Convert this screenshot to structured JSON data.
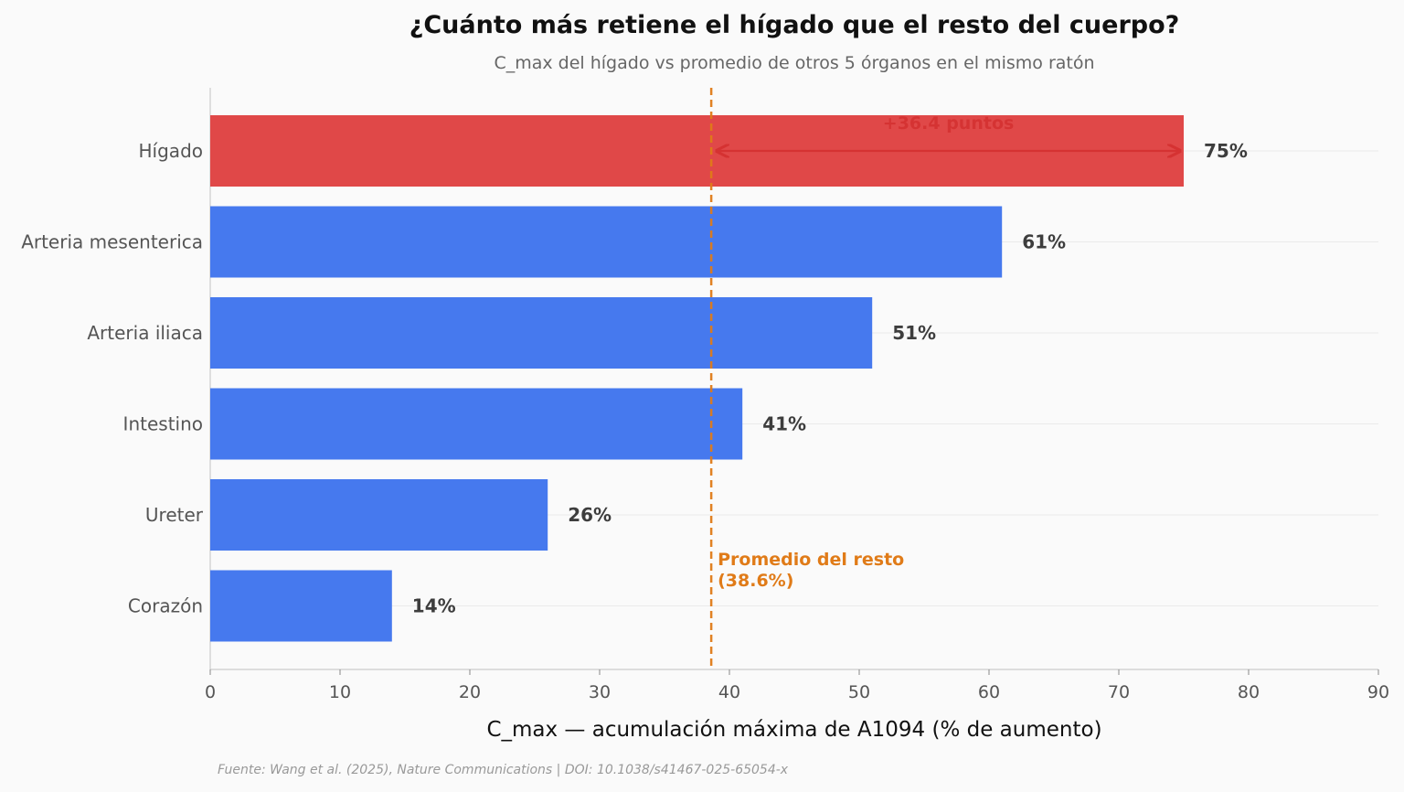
{
  "header": {
    "title": "¿Cuánto más retiene el hígado que el resto del cuerpo?",
    "subtitle": "C_max del hígado vs promedio de otros 5 órganos en el mismo ratón"
  },
  "footer": {
    "source": "Fuente: Wang et al. (2025), Nature Communications | DOI: 10.1038/s41467-025-65054-x"
  },
  "chart_data": {
    "type": "bar",
    "orientation": "horizontal",
    "categories": [
      "Hígado",
      "Arteria mesenterica",
      "Arteria iliaca",
      "Intestino",
      "Ureter",
      "Corazón"
    ],
    "values": [
      75,
      61,
      51,
      41,
      26,
      14
    ],
    "value_labels": [
      "75%",
      "61%",
      "51%",
      "41%",
      "26%",
      "14%"
    ],
    "xlabel": "C_max — acumulación máxima de A1094 (% de aumento)",
    "xlim": [
      0,
      90
    ],
    "xticks": [
      0,
      10,
      20,
      30,
      40,
      50,
      60,
      70,
      80,
      90
    ],
    "grid": "horizontal-light",
    "highlight_category": "Hígado",
    "reference_line": {
      "value": 38.6,
      "label_line1": "Promedio del resto",
      "label_line2": "(38.6%)"
    },
    "difference_annotation": {
      "from": 38.6,
      "to": 75,
      "label": "+36.4 puntos"
    },
    "colors": {
      "highlight": "#e04848",
      "bar": "#4679ee",
      "reference": "#e07b18",
      "annotation": "#d43030",
      "value_label": "#3d3d3d",
      "axis_text": "#555555"
    }
  }
}
